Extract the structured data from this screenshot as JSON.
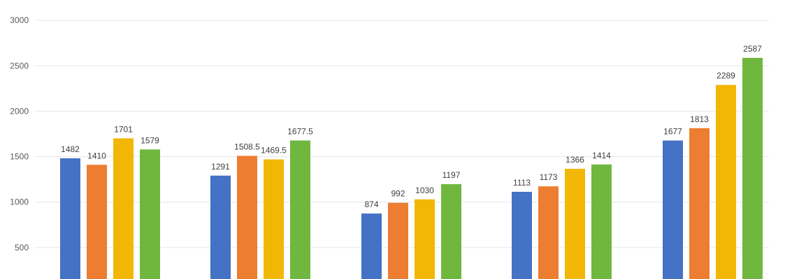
{
  "chart_data": {
    "type": "bar",
    "title": "",
    "xlabel": "",
    "ylabel": "",
    "ylim": [
      0,
      3000
    ],
    "yticks": [
      500,
      1000,
      1500,
      2000,
      2500,
      3000
    ],
    "grid": true,
    "legend": "none",
    "categories": [
      "",
      "",
      "",
      "",
      ""
    ],
    "series": [
      {
        "color": "#4472C4",
        "values": [
          1482,
          1291,
          874,
          1113,
          1677
        ],
        "labels": [
          "1482",
          "1291",
          "874",
          "1113",
          "1677"
        ]
      },
      {
        "color": "#ED7D31",
        "values": [
          1410,
          1508.5,
          992,
          1173,
          1813
        ],
        "labels": [
          "1410",
          "1508.5",
          "992",
          "1173",
          "1813"
        ]
      },
      {
        "color": "#F2B705",
        "values": [
          1701,
          1469.5,
          1030,
          1366,
          2289
        ],
        "labels": [
          "1701",
          "1469.5",
          "1030",
          "1366",
          "2289"
        ]
      },
      {
        "color": "#70B73F",
        "values": [
          1579,
          1677.5,
          1197,
          1414,
          2587
        ],
        "labels": [
          "1579",
          "1677.5",
          "1197",
          "1414",
          "2587"
        ]
      }
    ]
  }
}
